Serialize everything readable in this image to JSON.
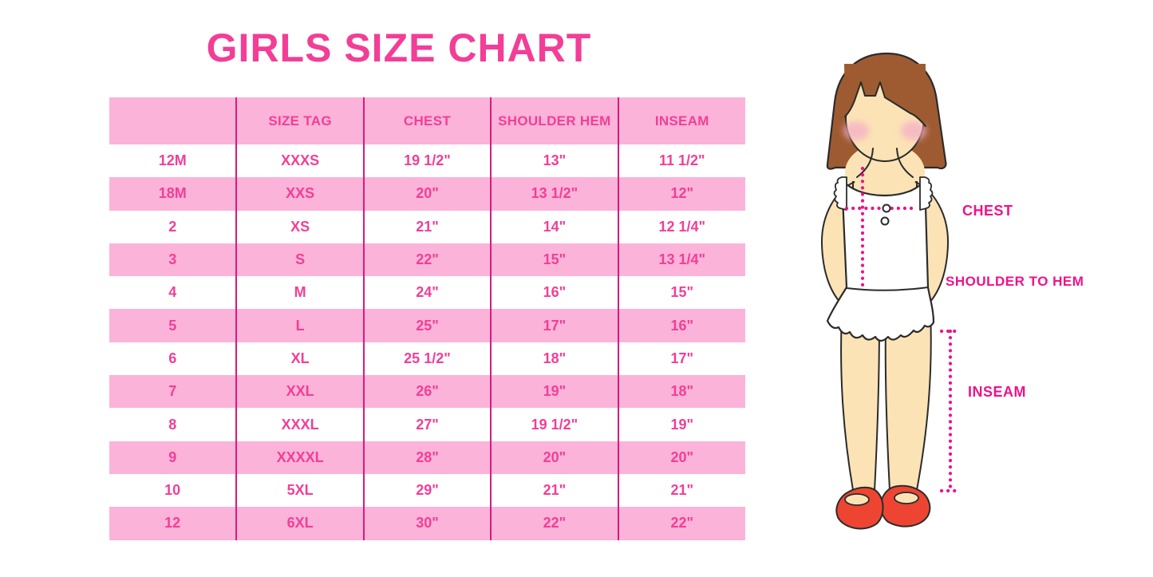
{
  "title": "GIRLS SIZE CHART",
  "chart_data": {
    "type": "table",
    "title": "GIRLS SIZE CHART",
    "columns": [
      "",
      "SIZE TAG",
      "CHEST",
      "SHOULDER HEM",
      "INSEAM"
    ],
    "rows": [
      [
        "12M",
        "XXXS",
        "19 1/2\"",
        "13\"",
        "11 1/2\""
      ],
      [
        "18M",
        "XXS",
        "20\"",
        "13 1/2\"",
        "12\""
      ],
      [
        "2",
        "XS",
        "21\"",
        "14\"",
        "12 1/4\""
      ],
      [
        "3",
        "S",
        "22\"",
        "15\"",
        "13 1/4\""
      ],
      [
        "4",
        "M",
        "24\"",
        "16\"",
        "15\""
      ],
      [
        "5",
        "L",
        "25\"",
        "17\"",
        "16\""
      ],
      [
        "6",
        "XL",
        "25 1/2\"",
        "18\"",
        "17\""
      ],
      [
        "7",
        "XXL",
        "26\"",
        "19\"",
        "18\""
      ],
      [
        "8",
        "XXXL",
        "27\"",
        "19 1/2\"",
        "19\""
      ],
      [
        "9",
        "XXXXL",
        "28\"",
        "20\"",
        "20\""
      ],
      [
        "10",
        "5XL",
        "29\"",
        "21\"",
        "21\""
      ],
      [
        "12",
        "6XL",
        "30\"",
        "22\"",
        "22\""
      ]
    ],
    "row_striping": "alternating white and pink, header pink"
  },
  "measurement_labels": {
    "chest": "CHEST",
    "shoulder_to_hem": "SHOULDER TO HEM",
    "inseam": "INSEAM"
  },
  "colors": {
    "title_pink": "#F23E97",
    "row_pink": "#FBB3D9",
    "table_line": "#D91A7D",
    "magenta": "#EE1389",
    "hair_brown": "#9E5B32",
    "skin": "#FBE3B6",
    "blush": "#F4AEC6",
    "shoe_red": "#EE4533",
    "outline": "#2B2B2B",
    "background": "#FFFFFF"
  }
}
